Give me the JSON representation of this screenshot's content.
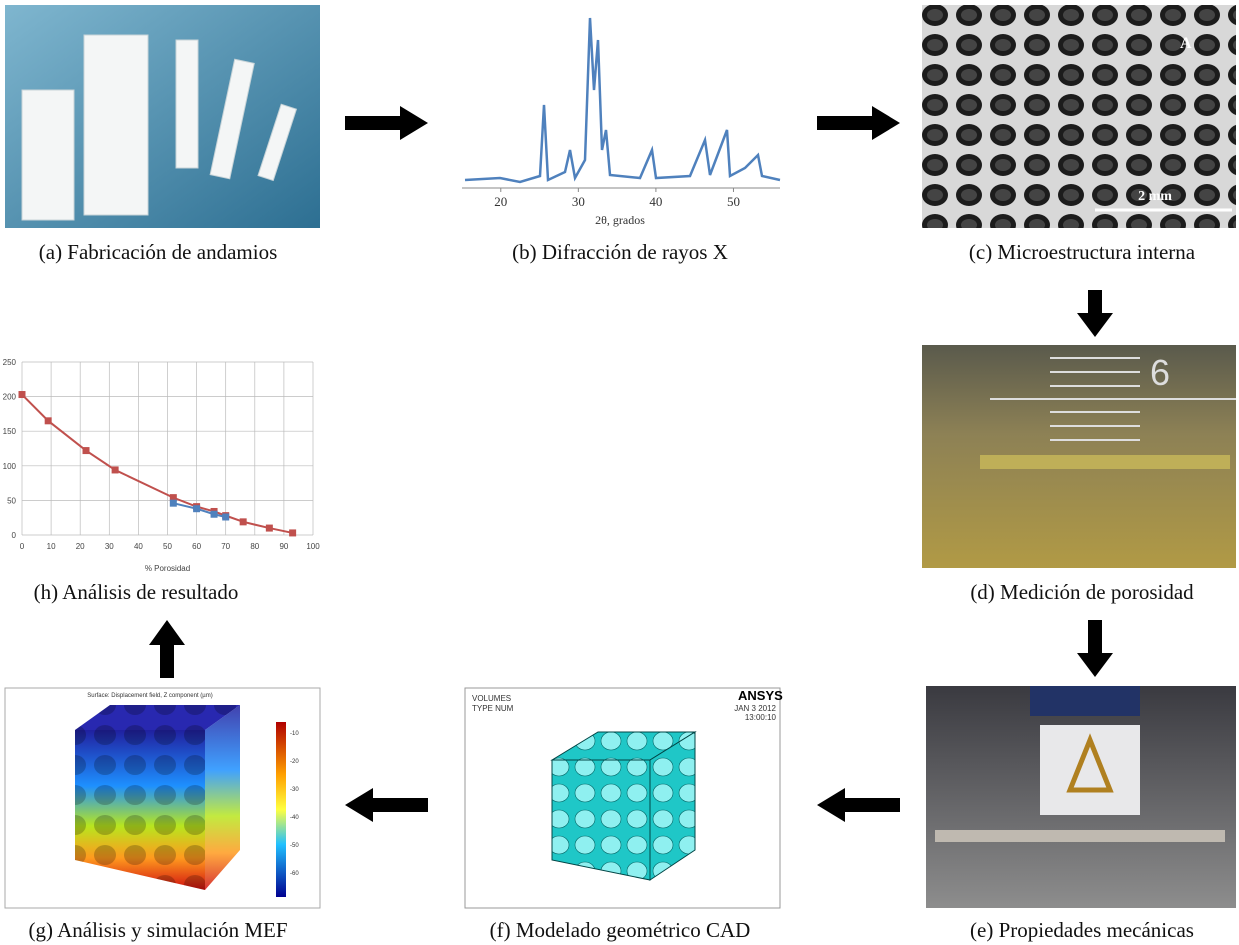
{
  "panels": [
    {
      "caption": "(a) Fabricación de andamios"
    },
    {
      "caption": "(b) Difracción de rayos X"
    },
    {
      "caption": "(c) Microestructura interna"
    },
    {
      "caption": "(d) Medición de porosidad"
    },
    {
      "caption": "(e) Propiedades mecánicas"
    },
    {
      "caption": "(f) Modelado geométrico CAD"
    },
    {
      "caption": "(g) Análisis y simulación MEF"
    },
    {
      "caption": "(h) Análisis de resultado"
    }
  ],
  "xrd": {
    "xlim": [
      15,
      56
    ],
    "xticks": [
      20,
      30,
      40,
      50
    ],
    "xlabel": "2θ, grados"
  },
  "micro": {
    "label": "A",
    "scale": "2 mm"
  },
  "porosity": {
    "mark": "6"
  },
  "cad": {
    "line1": "VOLUMES",
    "line2": "TYPE NUM",
    "brand": "ANSYS",
    "date": "JAN 3 2012",
    "time": "13:00:10"
  },
  "fem": {
    "title": "Surface: Displacement field, Z component (µm)",
    "ticks": [
      -10,
      -20,
      -30,
      -40,
      -50,
      -60
    ]
  },
  "chart_data": {
    "type": "line",
    "xlim": [
      0,
      100
    ],
    "ylim": [
      0,
      250
    ],
    "xticks": [
      0,
      10,
      20,
      30,
      40,
      50,
      60,
      70,
      80,
      90,
      100
    ],
    "yticks": [
      0,
      50,
      100,
      150,
      200,
      250
    ],
    "xlabel": "% Porosidad",
    "grid": true,
    "series": [
      {
        "color": "#c0504d",
        "x": [
          0,
          9,
          22,
          32,
          52,
          60,
          66,
          70,
          76,
          85,
          93
        ],
        "values": [
          203,
          165,
          122,
          94,
          54,
          41,
          34,
          28,
          19,
          10,
          3
        ]
      },
      {
        "color": "#4f81bd",
        "x": [
          52,
          60,
          66,
          70
        ],
        "values": [
          46,
          38,
          30,
          26
        ]
      }
    ]
  }
}
